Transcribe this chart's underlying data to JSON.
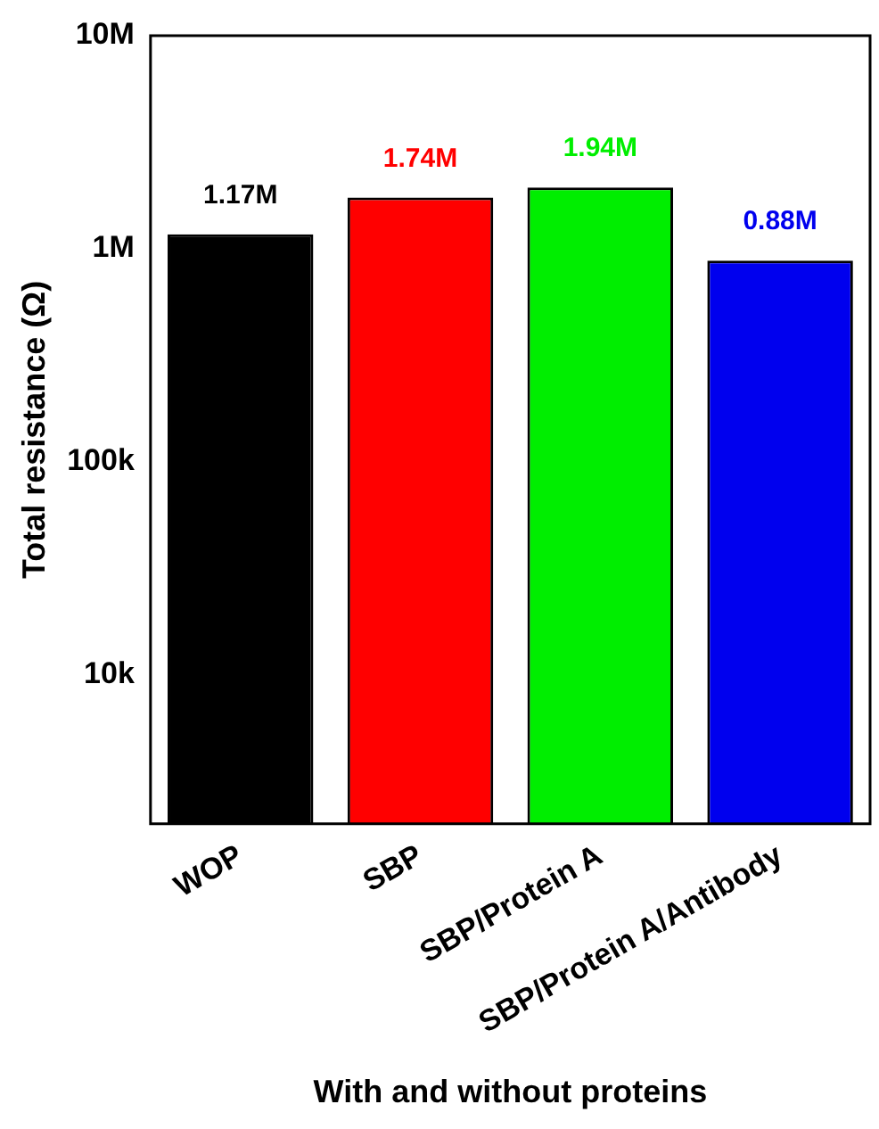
{
  "chart_data": {
    "type": "bar",
    "xlabel": "With and without proteins",
    "ylabel": "Total resistance (Ω)",
    "categories": [
      "WOP",
      "SBP",
      "SBP/Protein A",
      "SBP/Protein A/Antibody"
    ],
    "values": [
      1170000,
      1740000,
      1940000,
      880000
    ],
    "colors": [
      "#000000",
      "#ff0000",
      "#00ee00",
      "#0000ee"
    ],
    "value_labels": [
      "1.17M",
      "1.74M",
      "1.94M",
      "0.88M"
    ],
    "log": "y",
    "ylim": [
      2000,
      10000000
    ],
    "yticks": [
      {
        "value": 10000,
        "label": "10k"
      },
      {
        "value": 100000,
        "label": "100k"
      },
      {
        "value": 1000000,
        "label": "1M"
      },
      {
        "value": 10000000,
        "label": "10M"
      }
    ],
    "grid": false,
    "legend": false
  }
}
